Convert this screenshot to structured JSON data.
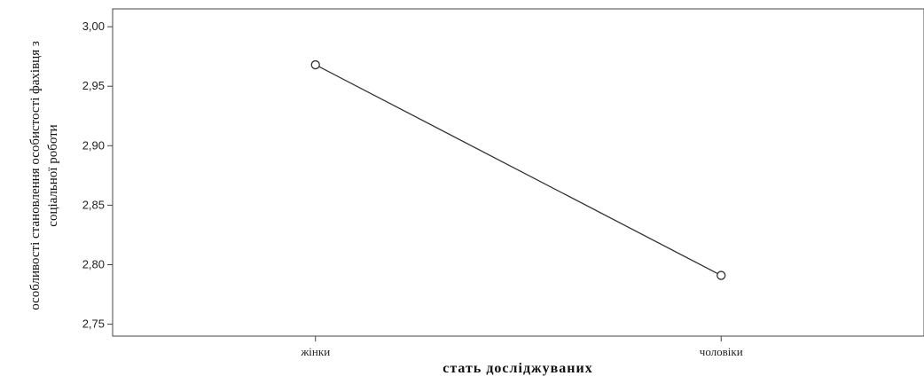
{
  "chart_data": {
    "type": "line",
    "categories": [
      "жінки",
      "чоловіки"
    ],
    "series": [
      {
        "values": [
          2.968,
          2.791
        ]
      }
    ],
    "xlabel": "стать досліджуваних",
    "ylabel_lines": [
      "особливості становлення особистості фахівця з",
      "соціальної роботи"
    ],
    "ylim": [
      2.74,
      3.015
    ],
    "yticks": [
      "3,00",
      "2,95",
      "2,90",
      "2,85",
      "2,80",
      "2,75"
    ],
    "ytick_values": [
      3.0,
      2.95,
      2.9,
      2.85,
      2.8,
      2.75
    ],
    "grid": false,
    "legend": "none",
    "colors": {
      "line": "#333333",
      "axis": "#444444",
      "marker": "#333333"
    }
  }
}
